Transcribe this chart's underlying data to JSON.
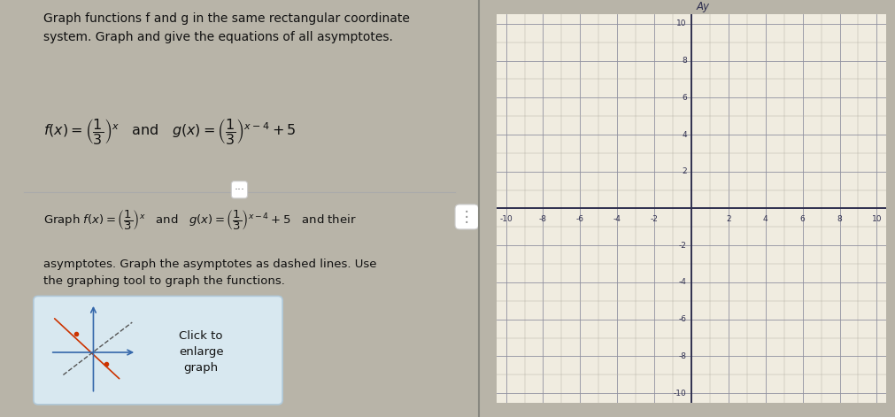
{
  "xlim": [
    -10.5,
    10.5
  ],
  "ylim": [
    -10.5,
    10.5
  ],
  "bg_color": "#f0ece0",
  "left_panel_bg": "#e8e4d8",
  "grid_minor_color": "#b8b4a8",
  "grid_major_color": "#9090a0",
  "axis_color": "#303050",
  "tick_label_color": "#303050",
  "ay_label": "Ay",
  "click_box_bg": "#d8e8f0",
  "click_box_edge": "#b0c8d8",
  "cross_color": "#3366aa",
  "dot_color": "#cc3300",
  "text_color": "#111111",
  "divider_color": "#aaaaaa",
  "dots_btn_color": "#666666"
}
